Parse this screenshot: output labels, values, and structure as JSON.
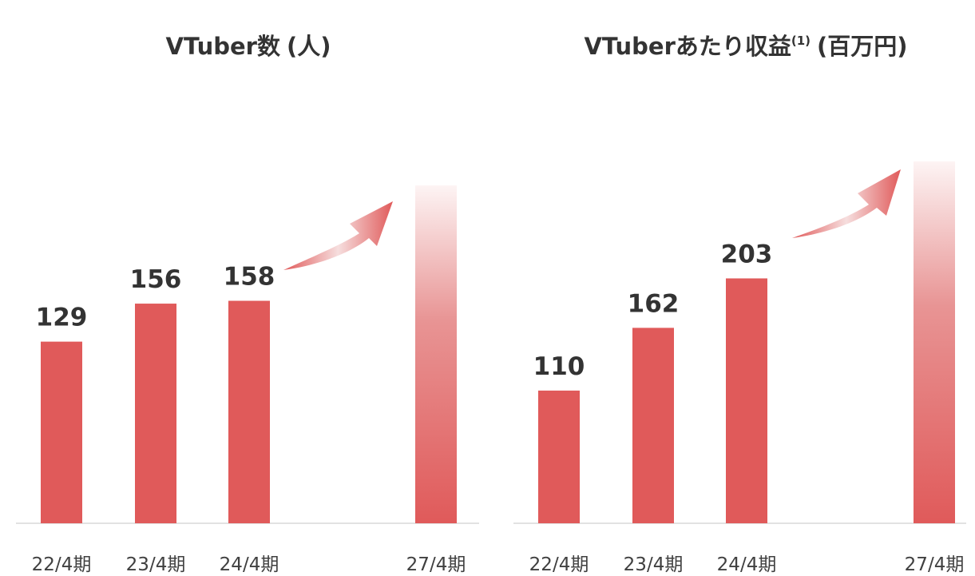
{
  "chart_data": [
    {
      "type": "bar",
      "title": "VTuber数",
      "title_unit": "(人)",
      "categories": [
        "22/4期",
        "23/4期",
        "24/4期",
        "27/4期"
      ],
      "values": [
        129,
        156,
        158,
        240
      ],
      "value_labels": [
        "129",
        "156",
        "158",
        null
      ],
      "color": "#e05a5a",
      "ylim": [
        0,
        240
      ]
    },
    {
      "type": "bar",
      "title": "VTuberあたり収益",
      "title_note": "(1)",
      "title_unit": "(百万円)",
      "categories": [
        "22/4期",
        "23/4期",
        "24/4期",
        "27/4期"
      ],
      "values": [
        110,
        162,
        203,
        300
      ],
      "value_labels": [
        "110",
        "162",
        "203",
        null
      ],
      "color": "#e05a5a",
      "ylim": [
        0,
        300
      ]
    }
  ]
}
